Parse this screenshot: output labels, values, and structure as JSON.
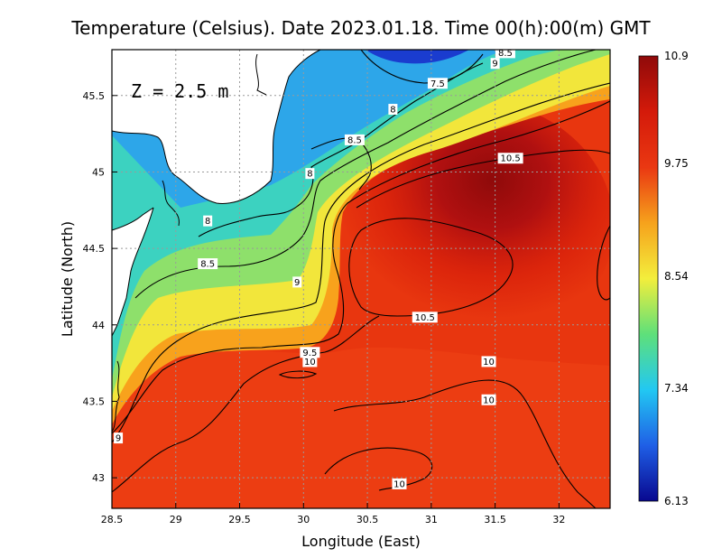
{
  "title": "Temperature (Celsius). Date 2023.01.18. Time 00(h):00(m) GMT",
  "depth_label": "Z = 2.5 m",
  "x_axis": {
    "label": "Longitude (East)",
    "range": [
      28.5,
      32.4
    ],
    "ticks": [
      "28.5",
      "29",
      "29.5",
      "30",
      "30.5",
      "31",
      "31.5",
      "32"
    ]
  },
  "y_axis": {
    "label": "Latitude (North)",
    "range": [
      42.8,
      45.8
    ],
    "ticks": [
      "43",
      "43.5",
      "44",
      "44.5",
      "45",
      "45.5"
    ]
  },
  "colorbar": {
    "min": 6.13,
    "max": 10.9,
    "tick_labels": [
      "10.9",
      "9.75",
      "8.54",
      "7.34",
      "6.13"
    ],
    "colors": [
      "#08088f",
      "#1f5fe6",
      "#22c8f2",
      "#5ee07a",
      "#f3ee3c",
      "#f6a21c",
      "#ea3812",
      "#d41a0a",
      "#8f0a0a"
    ]
  },
  "contour_labels": [
    {
      "text": "8.5",
      "lon": 31.58,
      "lat": 45.78
    },
    {
      "text": "9",
      "lon": 31.5,
      "lat": 45.71
    },
    {
      "text": "7.5",
      "lon": 31.05,
      "lat": 45.58
    },
    {
      "text": "8",
      "lon": 30.7,
      "lat": 45.41
    },
    {
      "text": "8.5",
      "lon": 30.4,
      "lat": 45.21
    },
    {
      "text": "8",
      "lon": 30.05,
      "lat": 44.99
    },
    {
      "text": "10.5",
      "lon": 31.62,
      "lat": 45.09
    },
    {
      "text": "8",
      "lon": 29.25,
      "lat": 44.68
    },
    {
      "text": "8.5",
      "lon": 29.25,
      "lat": 44.4
    },
    {
      "text": "9",
      "lon": 29.95,
      "lat": 44.28
    },
    {
      "text": "10.5",
      "lon": 30.95,
      "lat": 44.05
    },
    {
      "text": "9.5",
      "lon": 30.05,
      "lat": 43.82
    },
    {
      "text": "10",
      "lon": 30.05,
      "lat": 43.76
    },
    {
      "text": "10",
      "lon": 31.45,
      "lat": 43.76
    },
    {
      "text": "10",
      "lon": 31.45,
      "lat": 43.51
    },
    {
      "text": "9",
      "lon": 28.55,
      "lat": 43.26
    },
    {
      "text": "10",
      "lon": 30.75,
      "lat": 42.96
    }
  ]
}
